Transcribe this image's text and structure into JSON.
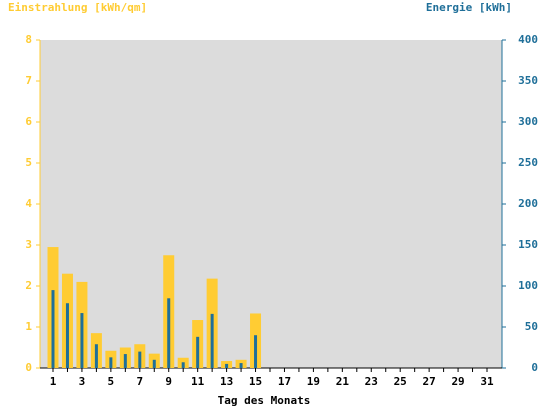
{
  "chart_data": {
    "type": "bar",
    "y_label": "Einstrahlung [kWh/qm]",
    "y2_label": "Energie [kWh]",
    "x_label": "Tag des Monats",
    "categories": [
      "1",
      null,
      "3",
      null,
      "5",
      null,
      "7",
      null,
      "9",
      null,
      "11",
      null,
      "13",
      null,
      "15",
      null,
      "17",
      null,
      "19",
      null,
      "21",
      null,
      "23",
      null,
      "25",
      null,
      "27",
      null,
      "29",
      null,
      "31"
    ],
    "series": [
      {
        "name": "Einstrahlung",
        "color": "#ffcc33",
        "values": [
          2.95,
          2.3,
          2.1,
          0.85,
          0.42,
          0.5,
          0.58,
          0.35,
          2.75,
          0.25,
          1.17,
          2.18,
          0.17,
          0.2,
          1.33,
          null,
          null,
          null,
          null,
          null,
          null,
          null,
          null,
          null,
          null,
          null,
          null,
          null,
          null,
          null,
          null
        ]
      },
      {
        "name": "Energie",
        "color": "#1f6f99",
        "axis": "y2",
        "values": [
          95,
          79,
          67,
          29,
          13,
          17,
          20,
          10,
          85,
          7,
          38,
          66,
          5,
          6,
          40,
          null,
          null,
          null,
          null,
          null,
          null,
          null,
          null,
          null,
          null,
          null,
          null,
          null,
          null,
          null,
          null
        ]
      }
    ],
    "ylim": [
      0,
      8
    ],
    "yticks": [
      0,
      1,
      2,
      3,
      4,
      5,
      6,
      7,
      8
    ],
    "y2lim": [
      0,
      400
    ],
    "y2ticks": [
      0,
      50,
      100,
      150,
      200,
      250,
      300,
      350,
      400
    ]
  }
}
